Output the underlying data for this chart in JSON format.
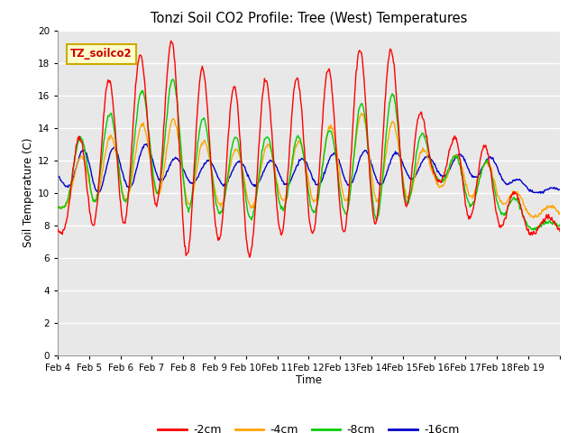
{
  "title": "Tonzi Soil CO2 Profile: Tree (West) Temperatures",
  "xlabel": "Time",
  "ylabel": "Soil Temperature (C)",
  "ylim": [
    0,
    20
  ],
  "yticks": [
    0,
    2,
    4,
    6,
    8,
    10,
    12,
    14,
    16,
    18,
    20
  ],
  "colors": {
    "-2cm": "#ff0000",
    "-4cm": "#ffa500",
    "-8cm": "#00cc00",
    "-16cm": "#0000cd"
  },
  "legend_label": "TZ_soilco2",
  "legend_box_facecolor": "#ffffcc",
  "legend_box_edgecolor": "#ccaa00",
  "plot_bg_color": "#e8e8e8",
  "grid_color": "#ffffff",
  "xtick_labels": [
    "Feb 4",
    "Feb 5",
    "Feb 6",
    "Feb 7",
    "Feb 8",
    "Feb 9",
    "Feb 10",
    "Feb 11",
    "Feb 12",
    "Feb 13",
    "Feb 14",
    "Feb 15",
    "Feb 16",
    "Feb 17",
    "Feb 18",
    "Feb 19"
  ],
  "linewidth": 1.0,
  "n_days": 16,
  "n_points_per_day": 48,
  "peaks_2cm": [
    8.5,
    16.0,
    17.5,
    19.0,
    19.5,
    16.5,
    16.5,
    17.2,
    17.0,
    18.0,
    19.3,
    18.5,
    12.5,
    13.9,
    12.2,
    8.5
  ],
  "troughs_2cm": [
    7.5,
    8.0,
    7.9,
    9.8,
    6.0,
    7.3,
    5.9,
    7.5,
    7.5,
    7.5,
    8.0,
    9.0,
    11.0,
    8.5,
    8.0,
    7.5
  ],
  "peaks_4cm": [
    9.5,
    13.3,
    13.5,
    14.5,
    14.5,
    12.5,
    12.8,
    13.0,
    13.2,
    14.5,
    15.0,
    14.0,
    12.0,
    12.5,
    11.5,
    9.2
  ],
  "troughs_4cm": [
    9.0,
    9.5,
    9.5,
    10.0,
    9.3,
    9.3,
    9.0,
    9.5,
    9.5,
    9.5,
    9.5,
    9.5,
    10.5,
    9.8,
    9.5,
    8.5
  ],
  "peaks_8cm": [
    9.5,
    15.0,
    14.8,
    17.0,
    17.0,
    13.3,
    13.5,
    13.5,
    13.5,
    14.0,
    16.2,
    16.0,
    12.3,
    12.2,
    11.8,
    8.2
  ],
  "troughs_8cm": [
    9.0,
    9.5,
    9.3,
    10.2,
    9.0,
    8.8,
    8.3,
    9.0,
    8.8,
    8.8,
    8.3,
    9.0,
    11.0,
    9.3,
    8.8,
    7.8
  ],
  "peaks_16cm": [
    11.4,
    12.9,
    12.7,
    13.0,
    11.9,
    12.0,
    11.9,
    12.0,
    12.1,
    12.5,
    12.6,
    12.4,
    12.2,
    12.4,
    12.1,
    10.3
  ],
  "troughs_16cm": [
    10.5,
    10.0,
    10.1,
    10.8,
    10.6,
    10.5,
    10.4,
    10.5,
    10.5,
    10.5,
    10.4,
    10.8,
    11.0,
    11.0,
    10.8,
    10.0
  ],
  "phase_2cm": 0.0,
  "phase_4cm": 1.5,
  "phase_8cm": 1.0,
  "phase_16cm": 4.0
}
